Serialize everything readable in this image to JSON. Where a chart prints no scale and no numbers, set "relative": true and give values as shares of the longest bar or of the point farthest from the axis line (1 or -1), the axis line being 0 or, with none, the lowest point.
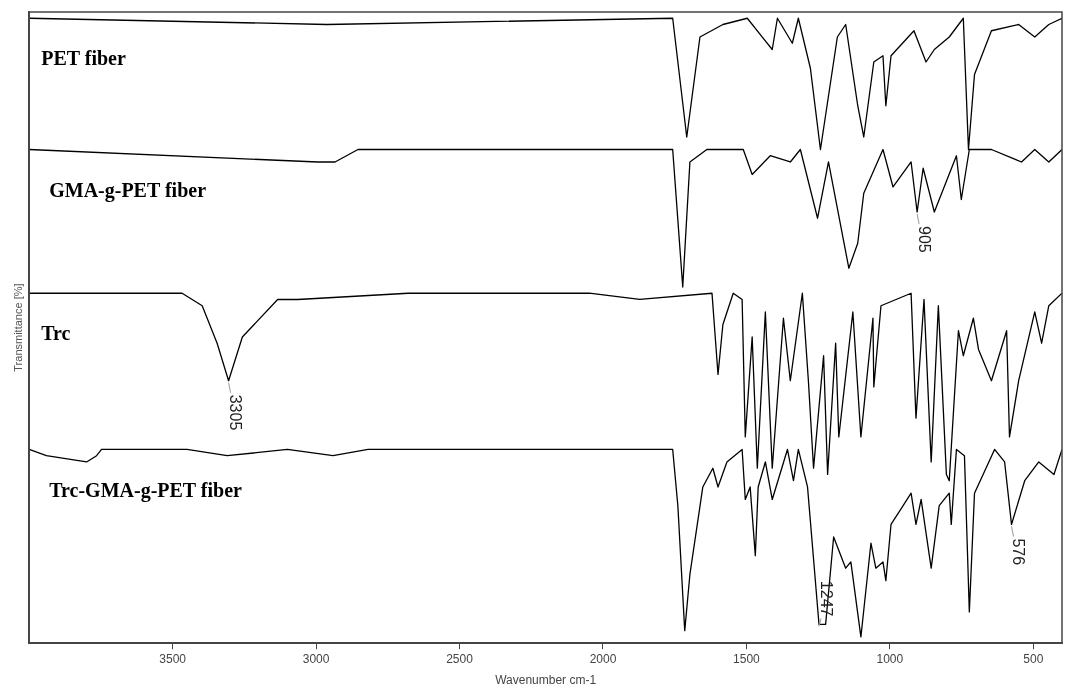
{
  "chart_data": {
    "type": "line",
    "relative": true,
    "xlabel": "Wavenumber cm-1",
    "ylabel": "Transmittance [%]",
    "xlim": [
      4000,
      400
    ],
    "xticks": [
      3500,
      3000,
      2500,
      2000,
      1500,
      1000,
      500
    ],
    "grid": false,
    "legend": false,
    "marker": "none",
    "line_style": "solid",
    "series": [
      {
        "name": "PET fiber",
        "color": "#000000",
        "x": [
          4000,
          2962,
          1757,
          1708,
          1662,
          1582,
          1497,
          1410,
          1392,
          1340,
          1319,
          1277,
          1242,
          1183,
          1154,
          1112,
          1091,
          1056,
          1024,
          1014,
          996,
          916,
          874,
          845,
          793,
          744,
          726,
          705,
          646,
          551,
          495,
          446,
          400
        ],
        "values": [
          1.0,
          0.99,
          1.0,
          0.81,
          0.97,
          0.99,
          1.0,
          0.95,
          1.0,
          0.96,
          1.0,
          0.92,
          0.79,
          0.97,
          0.99,
          0.86,
          0.81,
          0.93,
          0.94,
          0.86,
          0.94,
          0.98,
          0.93,
          0.95,
          0.97,
          1.0,
          0.79,
          0.91,
          0.98,
          0.99,
          0.97,
          0.99,
          1.0
        ]
      },
      {
        "name": "GMA-g-PET fiber",
        "color": "#000000",
        "x": [
          4000,
          2994,
          2934,
          2854,
          1757,
          1722,
          1697,
          1638,
          1511,
          1480,
          1417,
          1347,
          1312,
          1252,
          1214,
          1143,
          1112,
          1091,
          1024,
          989,
          926,
          905,
          884,
          845,
          768,
          751,
          723,
          646,
          541,
          495,
          446,
          400
        ],
        "values": [
          0.79,
          0.77,
          0.77,
          0.79,
          0.79,
          0.57,
          0.77,
          0.79,
          0.79,
          0.75,
          0.78,
          0.77,
          0.79,
          0.68,
          0.77,
          0.6,
          0.64,
          0.72,
          0.79,
          0.73,
          0.77,
          0.69,
          0.76,
          0.69,
          0.78,
          0.71,
          0.79,
          0.79,
          0.77,
          0.79,
          0.77,
          0.79
        ]
      },
      {
        "name": "Trc",
        "color": "#000000",
        "x": [
          4000,
          3467,
          3397,
          3345,
          3305,
          3257,
          3134,
          3064,
          2679,
          2048,
          1872,
          1620,
          1599,
          1582,
          1546,
          1515,
          1504,
          1480,
          1462,
          1434,
          1410,
          1371,
          1347,
          1305,
          1284,
          1266,
          1231,
          1217,
          1189,
          1178,
          1129,
          1101,
          1059,
          1056,
          1031,
          926,
          909,
          881,
          856,
          831,
          803,
          793,
          761,
          744,
          709,
          691,
          646,
          593,
          583,
          551,
          495,
          471,
          446,
          400
        ],
        "values": [
          0.56,
          0.56,
          0.54,
          0.48,
          0.42,
          0.49,
          0.55,
          0.55,
          0.56,
          0.56,
          0.55,
          0.56,
          0.43,
          0.51,
          0.56,
          0.55,
          0.33,
          0.49,
          0.28,
          0.53,
          0.28,
          0.52,
          0.42,
          0.56,
          0.42,
          0.28,
          0.46,
          0.27,
          0.48,
          0.33,
          0.53,
          0.33,
          0.52,
          0.41,
          0.54,
          0.56,
          0.36,
          0.55,
          0.29,
          0.54,
          0.27,
          0.26,
          0.5,
          0.46,
          0.52,
          0.47,
          0.42,
          0.5,
          0.33,
          0.42,
          0.53,
          0.48,
          0.54,
          0.56
        ]
      },
      {
        "name": "Trc-GMA-g-PET fiber",
        "color": "#000000",
        "x": [
          4000,
          3940,
          3800,
          3765,
          3748,
          3450,
          3310,
          3100,
          2941,
          2819,
          2188,
          1757,
          1739,
          1715,
          1697,
          1652,
          1617,
          1599,
          1568,
          1515,
          1504,
          1487,
          1469,
          1459,
          1434,
          1410,
          1357,
          1336,
          1319,
          1287,
          1247,
          1224,
          1196,
          1154,
          1136,
          1101,
          1066,
          1049,
          1024,
          1014,
          996,
          926,
          909,
          891,
          856,
          828,
          793,
          786,
          768,
          740,
          723,
          705,
          635,
          600,
          576,
          530,
          481,
          428,
          400
        ],
        "values": [
          0.31,
          0.3,
          0.29,
          0.3,
          0.31,
          0.31,
          0.3,
          0.31,
          0.3,
          0.31,
          0.31,
          0.31,
          0.22,
          0.02,
          0.11,
          0.25,
          0.28,
          0.25,
          0.29,
          0.31,
          0.23,
          0.25,
          0.14,
          0.25,
          0.29,
          0.23,
          0.31,
          0.26,
          0.31,
          0.25,
          0.03,
          0.03,
          0.17,
          0.12,
          0.13,
          0.01,
          0.16,
          0.12,
          0.13,
          0.1,
          0.19,
          0.24,
          0.19,
          0.23,
          0.12,
          0.22,
          0.24,
          0.19,
          0.31,
          0.3,
          0.05,
          0.24,
          0.31,
          0.29,
          0.19,
          0.26,
          0.29,
          0.27,
          0.31
        ]
      }
    ],
    "annotations": [
      {
        "text": "3305",
        "x": 3305,
        "y": 0.42
      },
      {
        "text": "905",
        "x": 905,
        "y": 0.69
      },
      {
        "text": "1247",
        "x": 1247,
        "y": 0.03
      },
      {
        "text": "576",
        "x": 576,
        "y": 0.19
      }
    ]
  }
}
